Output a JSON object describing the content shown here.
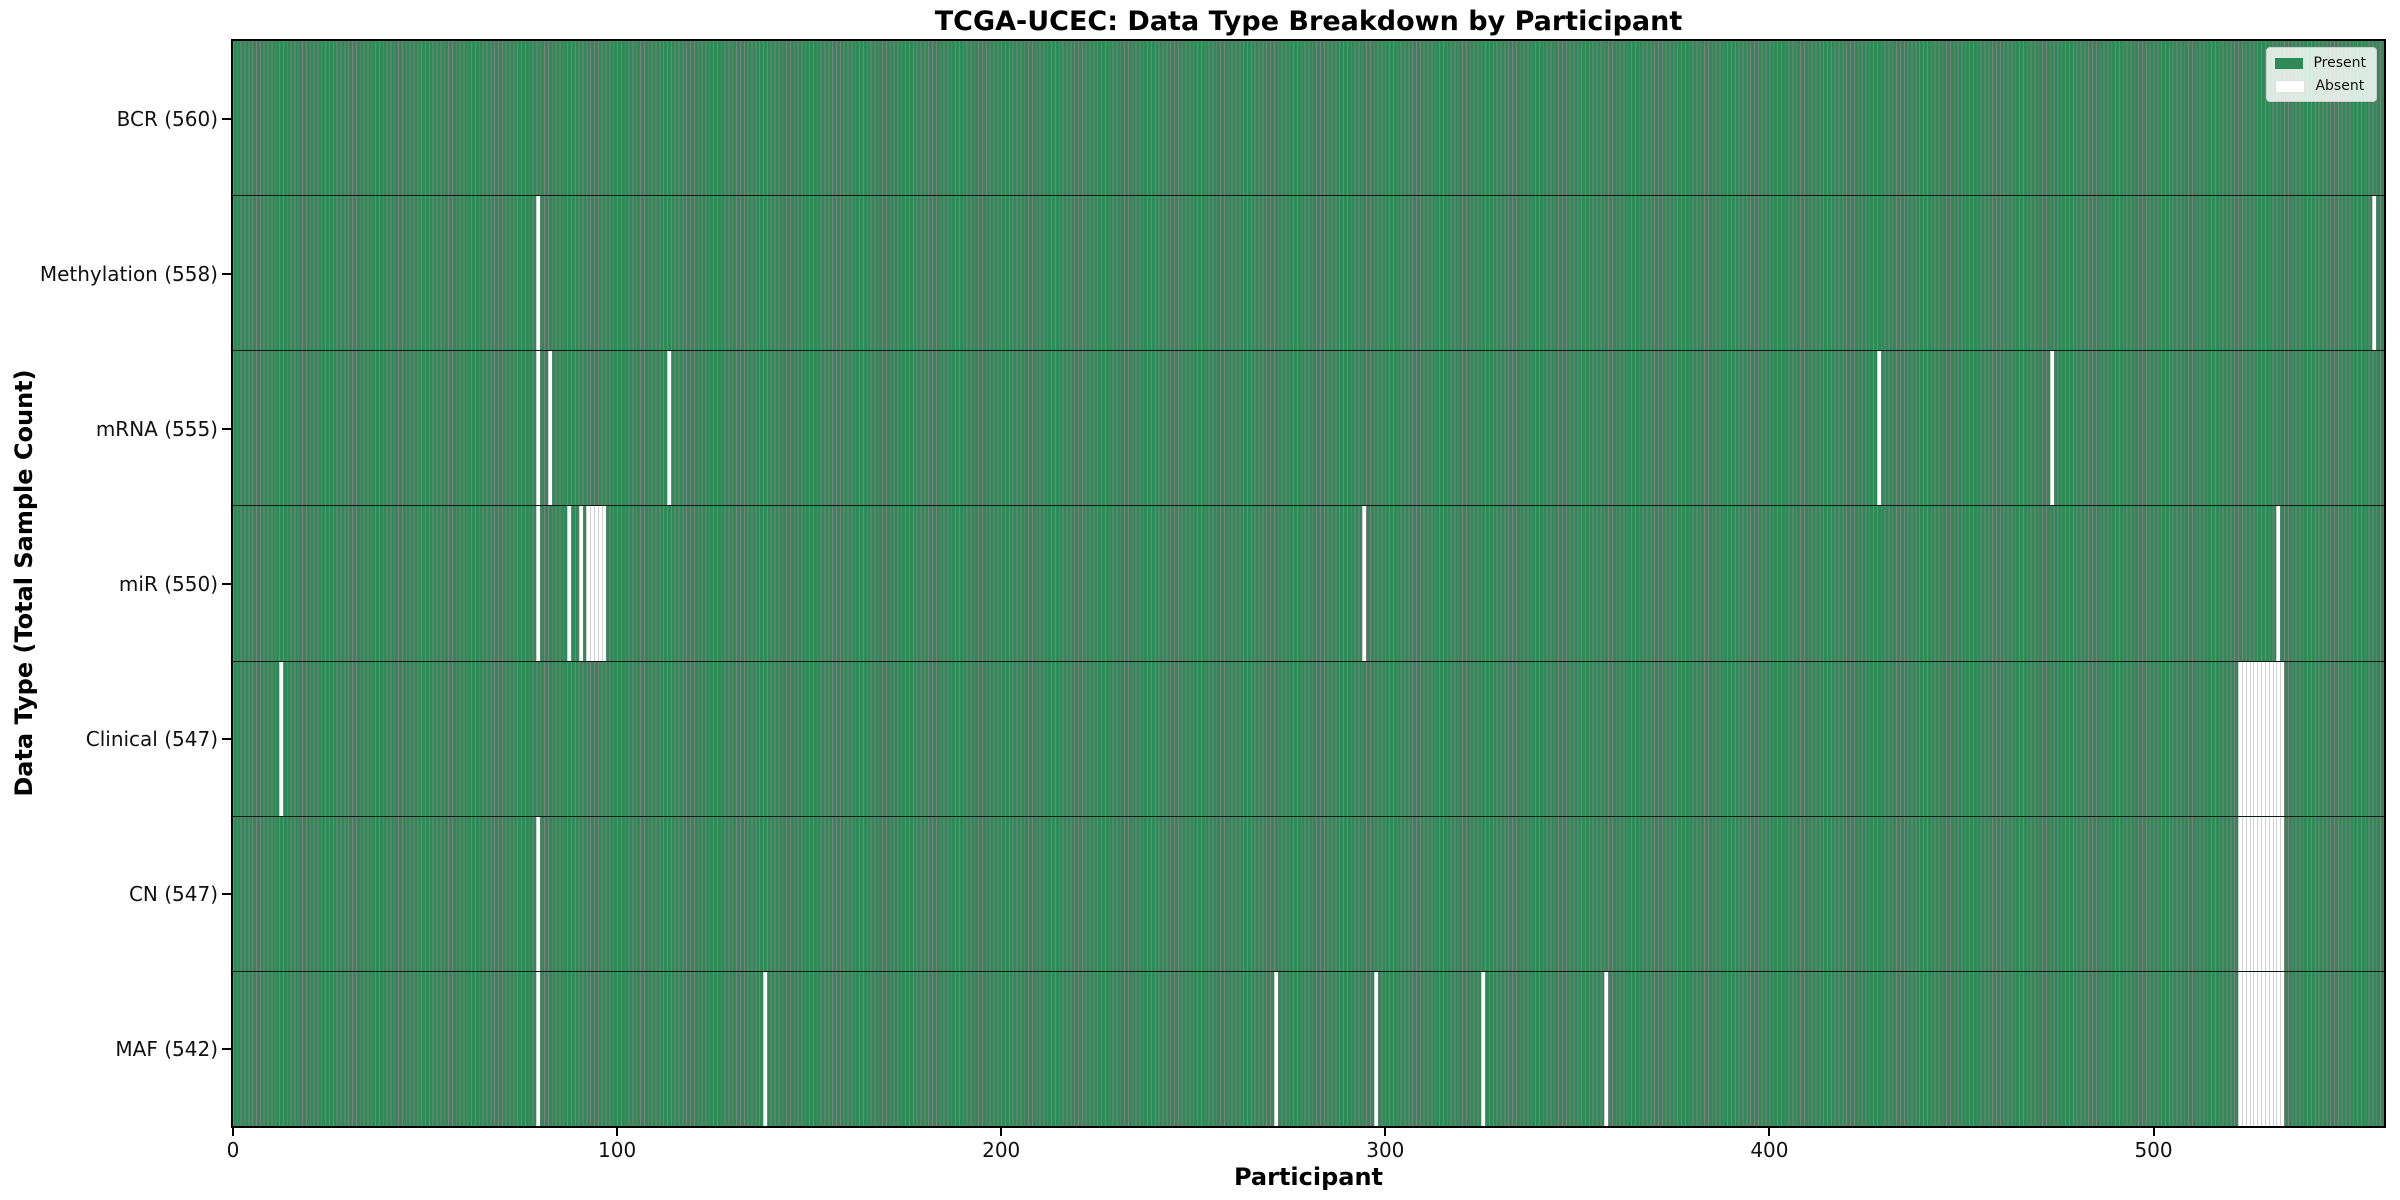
{
  "chart_data": {
    "type": "heatmap",
    "title": "TCGA-UCEC: Data Type Breakdown by Participant",
    "xlabel": "Participant",
    "ylabel": "Data Type (Total Sample Count)",
    "x_range": [
      0,
      560
    ],
    "x_ticks": [
      0,
      100,
      200,
      300,
      400,
      500
    ],
    "n_participants": 560,
    "present_color": "#2e8b57",
    "absent_color": "#ffffff",
    "bar_edge_color": "rgba(0,0,0,0.5)",
    "legend_position": "upper right",
    "grid": false,
    "legend": [
      {
        "label": "Present",
        "color": "#2e8b57"
      },
      {
        "label": "Absent",
        "color": "#ffffff"
      }
    ],
    "rows": [
      {
        "name": "BCR",
        "label": "BCR (560)",
        "total": 560,
        "absent": []
      },
      {
        "name": "Methylation",
        "label": "Methylation (558)",
        "total": 558,
        "absent": [
          79,
          557
        ]
      },
      {
        "name": "mRNA",
        "label": "mRNA (555)",
        "total": 555,
        "absent": [
          79,
          82,
          113,
          428,
          473
        ]
      },
      {
        "name": "miR",
        "label": "miR (550)",
        "total": 550,
        "absent": [
          79,
          87,
          90,
          92,
          93,
          94,
          95,
          96,
          294,
          532
        ]
      },
      {
        "name": "Clinical",
        "label": "Clinical (547)",
        "total": 547,
        "absent": [
          12,
          522,
          523,
          524,
          525,
          526,
          527,
          528,
          529,
          530,
          531,
          532,
          533
        ]
      },
      {
        "name": "CN",
        "label": "CN (547)",
        "total": 547,
        "absent": [
          79,
          522,
          523,
          524,
          525,
          526,
          527,
          528,
          529,
          530,
          531,
          532,
          533
        ]
      },
      {
        "name": "MAF",
        "label": "MAF (542)",
        "total": 542,
        "absent": [
          79,
          138,
          271,
          297,
          325,
          357,
          522,
          523,
          524,
          525,
          526,
          527,
          528,
          529,
          530,
          531,
          532,
          533
        ]
      }
    ]
  }
}
